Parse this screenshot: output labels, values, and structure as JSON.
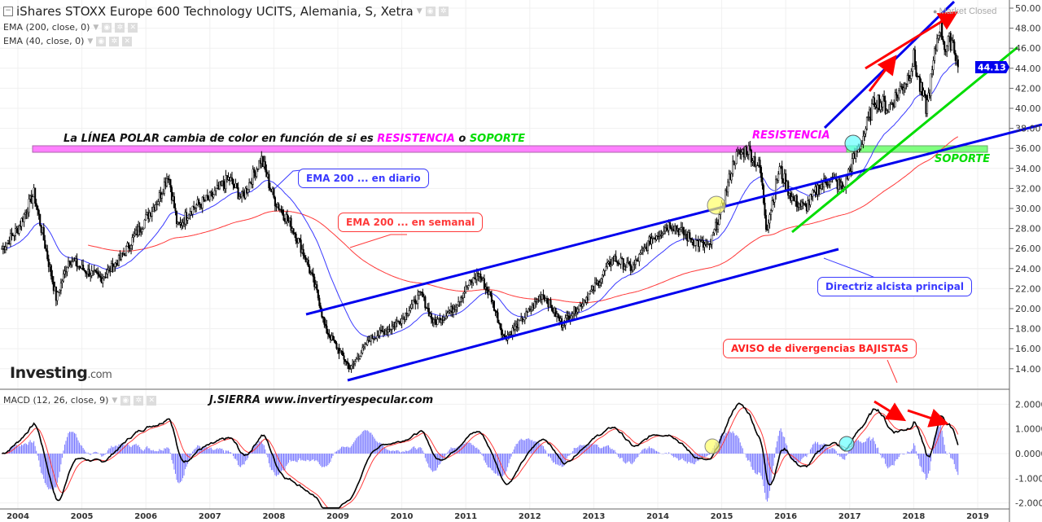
{
  "header": {
    "title": "iShares STOXX Europe 600 Technology UCITS, Alemania, S, Xetra",
    "indicators": [
      "EMA (200, close, 0)",
      "EMA (40, close, 0)"
    ],
    "macd_label": "MACD (12, 26, close, 9)",
    "market_status": "Market Closed"
  },
  "branding": {
    "logo": "Investing",
    "logo_suffix": ".com",
    "author": "J.SIERRA  www.invertiryespecular.com"
  },
  "annotations": {
    "polar_prefix": "La LÍNEA POLAR cambia de color en función de si es ",
    "polar_resist": "RESISTENCIA",
    "polar_o": " o ",
    "polar_support": "SOPORTE",
    "resistencia": "RESISTENCIA",
    "soporte": "SOPORTE",
    "ema_daily": "EMA 200 ... en diario",
    "ema_weekly": "EMA 200 ... en semanal",
    "directriz": "Directriz alcista principal",
    "aviso": "AVISO de divergencias BAJISTAS"
  },
  "colors": {
    "candle": "#000000",
    "ema_fast": "#3a3aff",
    "ema_slow": "#ff3a3a",
    "resist": "#ff00ff",
    "support": "#00dd00",
    "trend": "#0000ee",
    "macd": "#000000",
    "signal": "#ff3a3a",
    "hist": "#7777ff"
  },
  "chart_data": {
    "type": "candlestick",
    "title": "iShares STOXX Europe 600 Technology UCITS, Alemania, S, Xetra",
    "interval": "weekly",
    "last_price": "44.13",
    "y_ticks": [
      "50.00",
      "48.00",
      "46.00",
      "44.00",
      "42.00",
      "40.00",
      "38.00",
      "36.00",
      "34.00",
      "32.00",
      "30.00",
      "28.00",
      "26.00",
      "24.00",
      "22.00",
      "20.00",
      "18.00",
      "16.00",
      "14.00"
    ],
    "ylim": [
      12,
      50
    ],
    "x_ticks": [
      "2004",
      "2005",
      "2006",
      "2007",
      "2008",
      "2009",
      "2010",
      "2011",
      "2012",
      "2013",
      "2014",
      "2015",
      "2016",
      "2017",
      "2018",
      "2019"
    ],
    "close_keypoints": [
      [
        2003.75,
        26
      ],
      [
        2004.0,
        28
      ],
      [
        2004.25,
        31.5
      ],
      [
        2004.4,
        27
      ],
      [
        2004.6,
        21
      ],
      [
        2004.8,
        25
      ],
      [
        2005.0,
        24
      ],
      [
        2005.3,
        23
      ],
      [
        2005.6,
        25
      ],
      [
        2005.9,
        28
      ],
      [
        2006.2,
        31
      ],
      [
        2006.35,
        33.5
      ],
      [
        2006.5,
        28
      ],
      [
        2006.7,
        30
      ],
      [
        2007.0,
        31
      ],
      [
        2007.3,
        33
      ],
      [
        2007.5,
        31
      ],
      [
        2007.8,
        35
      ],
      [
        2008.0,
        31
      ],
      [
        2008.3,
        28
      ],
      [
        2008.5,
        25
      ],
      [
        2008.7,
        21
      ],
      [
        2008.8,
        18
      ],
      [
        2009.0,
        16
      ],
      [
        2009.2,
        14
      ],
      [
        2009.5,
        17
      ],
      [
        2009.8,
        18
      ],
      [
        2010.0,
        19
      ],
      [
        2010.3,
        21.5
      ],
      [
        2010.5,
        18.5
      ],
      [
        2010.8,
        20
      ],
      [
        2011.0,
        22
      ],
      [
        2011.2,
        23.5
      ],
      [
        2011.4,
        21
      ],
      [
        2011.6,
        17
      ],
      [
        2011.9,
        19
      ],
      [
        2012.2,
        21.5
      ],
      [
        2012.5,
        18.5
      ],
      [
        2012.8,
        20.5
      ],
      [
        2013.0,
        22
      ],
      [
        2013.3,
        25
      ],
      [
        2013.6,
        24
      ],
      [
        2013.9,
        27
      ],
      [
        2014.2,
        28.5
      ],
      [
        2014.5,
        27
      ],
      [
        2014.8,
        26
      ],
      [
        2015.0,
        30
      ],
      [
        2015.2,
        35
      ],
      [
        2015.4,
        36
      ],
      [
        2015.6,
        34
      ],
      [
        2015.7,
        28
      ],
      [
        2015.9,
        34
      ],
      [
        2016.1,
        31
      ],
      [
        2016.3,
        30
      ],
      [
        2016.5,
        32
      ],
      [
        2016.7,
        33
      ],
      [
        2016.9,
        32
      ],
      [
        2017.0,
        34
      ],
      [
        2017.2,
        37
      ],
      [
        2017.4,
        41
      ],
      [
        2017.6,
        40
      ],
      [
        2017.9,
        43
      ],
      [
        2018.0,
        45
      ],
      [
        2018.1,
        42
      ],
      [
        2018.2,
        40
      ],
      [
        2018.3,
        44
      ],
      [
        2018.4,
        48.5
      ],
      [
        2018.5,
        46
      ],
      [
        2018.6,
        47
      ],
      [
        2018.7,
        44.13
      ]
    ],
    "series": [
      {
        "name": "EMA (200, close, 0) daily-equivalent",
        "period_weeks": 40
      },
      {
        "name": "EMA (200, close, 0)",
        "period_weeks": 200
      }
    ],
    "macd": {
      "fast": 12,
      "slow": 26,
      "signal": 9,
      "y_ticks": [
        "2.0000",
        "1.0000",
        "0.0000",
        "-1.0000",
        "-2.0000"
      ],
      "ylim": [
        -2.2,
        2.3
      ]
    }
  }
}
